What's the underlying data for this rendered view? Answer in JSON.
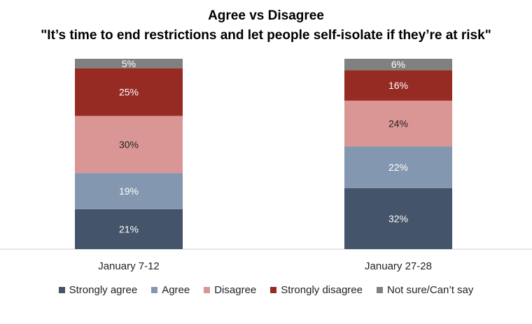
{
  "chart_data": {
    "type": "bar",
    "stacked": true,
    "title": "Agree vs Disagree",
    "subtitle": "\"It’s time to end restrictions and let people self-isolate if they’re at risk\"",
    "categories": [
      "January 7-12",
      "January 27-28"
    ],
    "series": [
      {
        "name": "Strongly agree",
        "values": [
          21,
          32
        ],
        "color": "#44546a"
      },
      {
        "name": "Agree",
        "values": [
          19,
          22
        ],
        "color": "#8497b0"
      },
      {
        "name": "Disagree",
        "values": [
          30,
          24
        ],
        "color": "#da9694"
      },
      {
        "name": "Strongly disagree",
        "values": [
          25,
          16
        ],
        "color": "#962b24"
      },
      {
        "name": "Not sure/Can’t say",
        "values": [
          5,
          6
        ],
        "color": "#808080"
      }
    ],
    "ylim": [
      0,
      100
    ],
    "value_format": "{v}%",
    "legend_position": "bottom",
    "grid": false
  }
}
